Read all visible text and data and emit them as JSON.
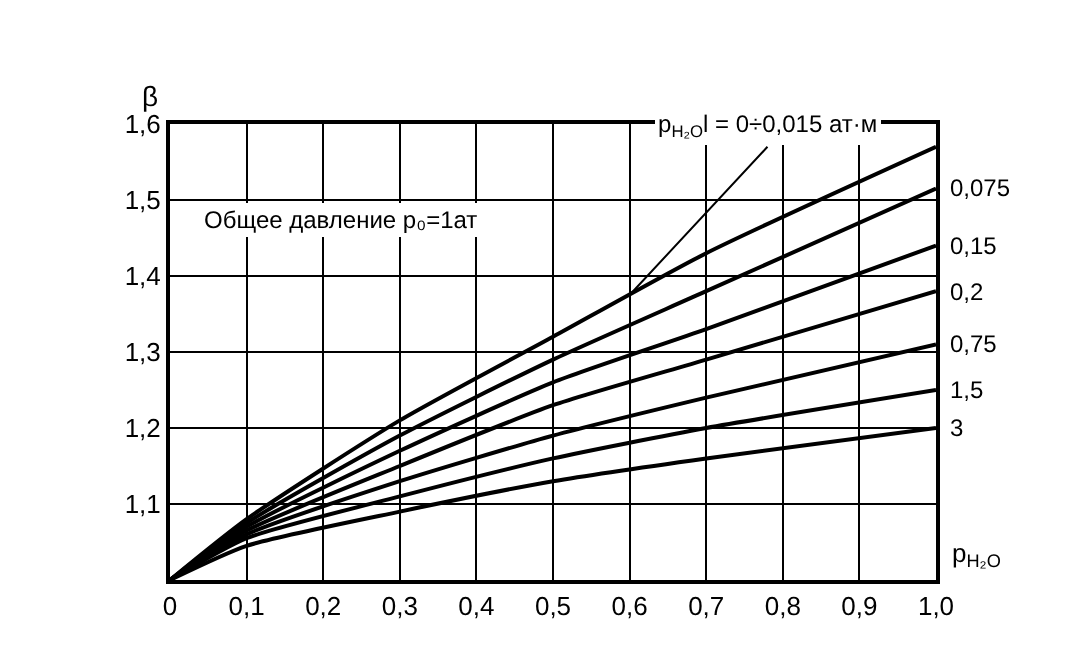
{
  "chart_data": {
    "type": "line",
    "xlabel": "p$_{H₂O}$",
    "ylabel": "β",
    "annotations": [
      "Общее давление p₀=1ат"
    ],
    "x": [
      0,
      0.1,
      0.3,
      0.5,
      0.7,
      1.0
    ],
    "series": [
      {
        "name": "p$_{H₂O}$l = 0÷0,015 ат·м",
        "color": "#000000",
        "values": [
          1.0,
          1.08,
          1.21,
          1.32,
          1.43,
          1.57
        ]
      },
      {
        "name": "0,075",
        "color": "#000000",
        "values": [
          1.0,
          1.075,
          1.19,
          1.29,
          1.38,
          1.515
        ]
      },
      {
        "name": "0,15",
        "color": "#000000",
        "values": [
          1.0,
          1.07,
          1.17,
          1.26,
          1.33,
          1.44
        ]
      },
      {
        "name": "0,2",
        "color": "#000000",
        "values": [
          1.0,
          1.065,
          1.15,
          1.23,
          1.29,
          1.38
        ]
      },
      {
        "name": "0,75",
        "color": "#000000",
        "values": [
          1.0,
          1.06,
          1.13,
          1.19,
          1.24,
          1.31
        ]
      },
      {
        "name": "1,5",
        "color": "#000000",
        "values": [
          1.0,
          1.055,
          1.11,
          1.16,
          1.2,
          1.25
        ]
      },
      {
        "name": "3",
        "color": "#000000",
        "values": [
          1.0,
          1.045,
          1.09,
          1.13,
          1.16,
          1.2
        ]
      }
    ],
    "xlim": [
      0,
      1.0
    ],
    "xticks": [
      0,
      {
        "value": 0.1,
        "label": "0,1"
      },
      {
        "value": 0.2,
        "label": "0,2"
      },
      {
        "value": 0.3,
        "label": "0,3"
      },
      {
        "value": 0.4,
        "label": "0,4"
      },
      {
        "value": 0.5,
        "label": "0,5"
      },
      {
        "value": 0.6,
        "label": "0,6"
      },
      {
        "value": 0.7,
        "label": "0,7"
      },
      {
        "value": 0.8,
        "label": "0,8"
      },
      {
        "value": 0.9,
        "label": "0,9"
      },
      {
        "value": 1.0,
        "label": "1,0"
      }
    ],
    "ylim": [
      1.0,
      1.6
    ],
    "yticks": [
      {
        "value": 1.0,
        "label": null
      },
      {
        "value": 1.1,
        "label": "1,1"
      },
      {
        "value": 1.2,
        "label": "1,2"
      },
      {
        "value": 1.3,
        "label": "1,3"
      },
      {
        "value": 1.4,
        "label": "1,4"
      },
      {
        "value": 1.5,
        "label": "1,5"
      },
      {
        "value": 1.6,
        "label": "1,6"
      }
    ],
    "grid": true,
    "legend": false,
    "marker": "none",
    "line_style": "solid"
  }
}
